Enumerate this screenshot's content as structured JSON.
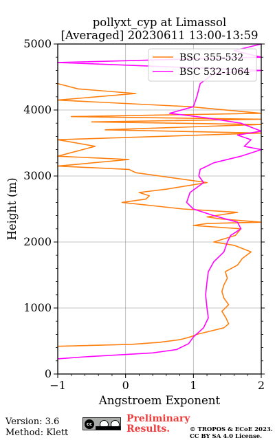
{
  "chart_data": {
    "type": "line",
    "title": "pollyxt_cyp at Limassol",
    "subtitle": "[Averaged] 20230611 13:00-13:59",
    "xlabel": "Angstroem Exponent",
    "ylabel": "Height (m)",
    "xlim": [
      -1,
      2
    ],
    "ylim": [
      0,
      5000
    ],
    "xticks": [
      "−1",
      "0",
      "1",
      "2"
    ],
    "yticks": [
      "0",
      "1000",
      "2000",
      "3000",
      "4000",
      "5000"
    ],
    "grid": true,
    "legend_position": "top-right",
    "series": [
      {
        "name": "BSC 355-532",
        "color": "#ff7f0e",
        "points": [
          [
            -1,
            420
          ],
          [
            0.1,
            450
          ],
          [
            0.5,
            480
          ],
          [
            0.8,
            520
          ],
          [
            0.95,
            560
          ],
          [
            1.05,
            600
          ],
          [
            1.25,
            650
          ],
          [
            1.45,
            700
          ],
          [
            1.52,
            760
          ],
          [
            1.48,
            850
          ],
          [
            1.42,
            950
          ],
          [
            1.52,
            1050
          ],
          [
            1.45,
            1150
          ],
          [
            1.42,
            1250
          ],
          [
            1.45,
            1350
          ],
          [
            1.5,
            1450
          ],
          [
            1.47,
            1550
          ],
          [
            1.65,
            1650
          ],
          [
            1.72,
            1750
          ],
          [
            1.85,
            1850
          ],
          [
            1.6,
            1950
          ],
          [
            1.3,
            2000
          ],
          [
            1.62,
            2100
          ],
          [
            1.7,
            2200
          ],
          [
            1.0,
            2250
          ],
          [
            1.2,
            2280
          ],
          [
            2.0,
            2300
          ],
          [
            1.4,
            2350
          ],
          [
            1.2,
            2380
          ],
          [
            1.65,
            2450
          ],
          [
            0.85,
            2500
          ],
          [
            -0.05,
            2600
          ],
          [
            0.3,
            2650
          ],
          [
            0.35,
            2700
          ],
          [
            0.2,
            2750
          ],
          [
            0.6,
            2800
          ],
          [
            1.2,
            2900
          ],
          [
            0.15,
            3050
          ],
          [
            0.05,
            3100
          ],
          [
            -1,
            3150
          ],
          [
            0.05,
            3250
          ],
          [
            -1,
            3300
          ],
          [
            -0.45,
            3450
          ],
          [
            -1,
            3550
          ],
          [
            2.0,
            3650
          ],
          [
            -0.3,
            3700
          ],
          [
            2.0,
            3780
          ],
          [
            -0.5,
            3820
          ],
          [
            2.0,
            3860
          ],
          [
            -0.8,
            3900
          ],
          [
            2.0,
            3950
          ],
          [
            0.95,
            4050
          ],
          [
            -1,
            4150
          ],
          [
            0.15,
            4250
          ],
          [
            -0.7,
            4320
          ],
          [
            -1,
            4400
          ]
        ]
      },
      {
        "name": "BSC 532-1064",
        "color": "#ff00ff",
        "points": [
          [
            -1,
            230
          ],
          [
            -0.6,
            260
          ],
          [
            -0.1,
            290
          ],
          [
            0.4,
            320
          ],
          [
            0.75,
            370
          ],
          [
            0.93,
            460
          ],
          [
            1.0,
            560
          ],
          [
            1.15,
            700
          ],
          [
            1.22,
            850
          ],
          [
            1.2,
            1000
          ],
          [
            1.18,
            1200
          ],
          [
            1.2,
            1400
          ],
          [
            1.22,
            1550
          ],
          [
            1.3,
            1700
          ],
          [
            1.45,
            1850
          ],
          [
            1.5,
            2000
          ],
          [
            1.55,
            2100
          ],
          [
            1.7,
            2200
          ],
          [
            1.65,
            2300
          ],
          [
            1.3,
            2400
          ],
          [
            1.0,
            2500
          ],
          [
            0.9,
            2600
          ],
          [
            0.95,
            2750
          ],
          [
            1.15,
            2900
          ],
          [
            1.08,
            3000
          ],
          [
            1.1,
            3100
          ],
          [
            1.3,
            3200
          ],
          [
            1.7,
            3300
          ],
          [
            2.0,
            3400
          ],
          [
            1.75,
            3450
          ],
          [
            1.85,
            3550
          ],
          [
            1.65,
            3620
          ],
          [
            2.0,
            3680
          ],
          [
            1.7,
            3800
          ],
          [
            1.2,
            3880
          ],
          [
            0.65,
            3950
          ],
          [
            1.0,
            4050
          ],
          [
            1.05,
            4200
          ],
          [
            1.1,
            4400
          ],
          [
            1.3,
            4550
          ],
          [
            2.0,
            4600
          ],
          [
            -1,
            4720
          ],
          [
            2.0,
            4800
          ],
          [
            1.6,
            4900
          ],
          [
            2.0,
            5000
          ]
        ]
      }
    ]
  },
  "footer": {
    "version": "Version: 3.6",
    "method": "Method: Klett",
    "license_badge": "cc-by-sa-badge",
    "preliminary": [
      "Preliminary",
      "Results."
    ],
    "copyright": [
      "© TROPOS & ECoE 2023.",
      "CC BY SA 4.0 License."
    ]
  }
}
